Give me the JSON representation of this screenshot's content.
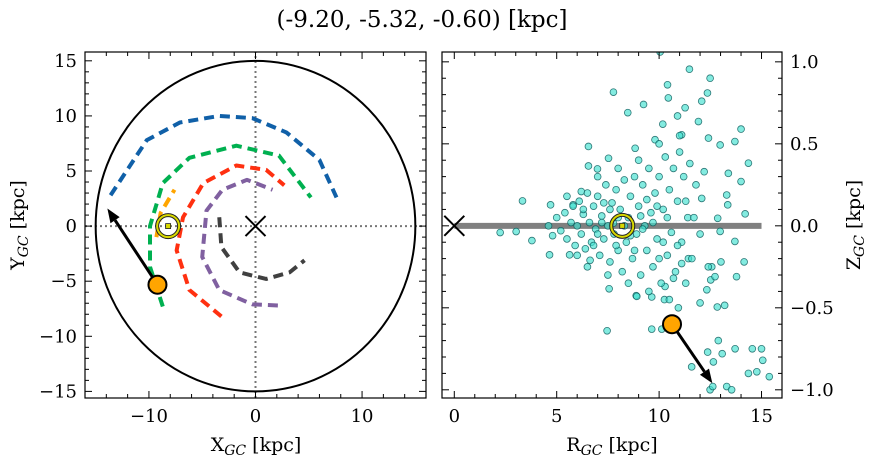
{
  "chart_data": [
    {
      "type": "line",
      "title": "(-9.20, -5.32, -0.60) [kpc]",
      "xlabel": {
        "main": "X",
        "sub": "GC",
        "unit": " [kpc]"
      },
      "ylabel": {
        "main": "Y",
        "sub": "GC",
        "unit": " [kpc]"
      },
      "xlim": [
        -16,
        16
      ],
      "ylim": [
        -15.6,
        15.8
      ],
      "xticks": [
        {
          "v": -10,
          "label": "−10"
        },
        {
          "v": 0,
          "label": "0"
        },
        {
          "v": 10,
          "label": "10"
        }
      ],
      "yticks": [
        {
          "v": 15,
          "label": "15"
        },
        {
          "v": 10,
          "label": "10"
        },
        {
          "v": 5,
          "label": "5"
        },
        {
          "v": 0,
          "label": "0"
        },
        {
          "v": -5,
          "label": "−5"
        },
        {
          "v": -10,
          "label": "−10"
        },
        {
          "v": -15,
          "label": "−15"
        }
      ],
      "x_minor_step": 2,
      "y_minor_step": 1,
      "boundary_circle_radius": 15,
      "reference_lines": {
        "x": 0,
        "y": 0,
        "style": "dotted",
        "color": "#777777"
      },
      "galactic_center": [
        0,
        0
      ],
      "sun": [
        -8.2,
        0
      ],
      "object": {
        "x": -9.2,
        "y": -5.32,
        "color": "#ffa500"
      },
      "velocity_arrow_tip": [
        -13.9,
        1.6
      ],
      "arms": [
        {
          "color": "#1060a8",
          "points": [
            [
              -13.6,
              2.8
            ],
            [
              -10.2,
              7.8
            ],
            [
              -7.1,
              9.4
            ],
            [
              -3.4,
              10.0
            ],
            [
              -0.3,
              9.8
            ],
            [
              2.9,
              8.5
            ],
            [
              6.0,
              6.0
            ],
            [
              7.6,
              2.6
            ]
          ]
        },
        {
          "color": "#00b050",
          "points": [
            [
              -8.7,
              -7.3
            ],
            [
              -9.9,
              -3.7
            ],
            [
              -9.9,
              0
            ],
            [
              -8.7,
              3.9
            ],
            [
              -6.2,
              6.2
            ],
            [
              -1.8,
              7.3
            ],
            [
              2.2,
              6.4
            ],
            [
              5.2,
              2.6
            ]
          ]
        },
        {
          "color": "#ffa500",
          "points": [
            [
              -9.3,
              -1.0
            ],
            [
              -8.9,
              1.2
            ],
            [
              -7.6,
              3.3
            ]
          ]
        },
        {
          "color": "#ff3010",
          "points": [
            [
              -3.2,
              -8.2
            ],
            [
              -6.2,
              -5.8
            ],
            [
              -7.4,
              -2.2
            ],
            [
              -6.8,
              0.8
            ],
            [
              -4.9,
              3.9
            ],
            [
              -1.8,
              5.5
            ],
            [
              1.0,
              5.1
            ],
            [
              2.7,
              3.7
            ]
          ]
        },
        {
          "color": "#8060a0",
          "points": [
            [
              2.1,
              -7.2
            ],
            [
              -0.3,
              -7.1
            ],
            [
              -3.4,
              -5.8
            ],
            [
              -5.0,
              -2.8
            ],
            [
              -4.6,
              1.4
            ],
            [
              -3.1,
              3.3
            ],
            [
              -0.8,
              4.2
            ],
            [
              1.6,
              3.3
            ]
          ]
        },
        {
          "color": "#404040",
          "points": [
            [
              -3.4,
              0.8
            ],
            [
              -3.2,
              -1.9
            ],
            [
              -1.5,
              -4.2
            ],
            [
              1.0,
              -4.8
            ],
            [
              3.2,
              -4.2
            ],
            [
              4.6,
              -3.1
            ]
          ]
        }
      ]
    },
    {
      "type": "scatter",
      "xlabel": {
        "main": "R",
        "sub": "GC",
        "unit": " [kpc]"
      },
      "ylabel": {
        "main": "Z",
        "sub": "GC",
        "unit": " [kpc]"
      },
      "xlim": [
        -0.6,
        16
      ],
      "ylim": [
        -1.05,
        1.06
      ],
      "xticks": [
        {
          "v": 0,
          "label": "0"
        },
        {
          "v": 5,
          "label": "5"
        },
        {
          "v": 10,
          "label": "10"
        },
        {
          "v": 15,
          "label": "15"
        }
      ],
      "yticks": [
        {
          "v": 1.0,
          "label": "1.0"
        },
        {
          "v": 0.5,
          "label": "0.5"
        },
        {
          "v": 0.0,
          "label": "0.0"
        },
        {
          "v": -0.5,
          "label": "−0.5"
        },
        {
          "v": -1.0,
          "label": "−1.0"
        }
      ],
      "y_axis_side": "right",
      "x_minor_step": 1,
      "y_minor_step": 0.1,
      "point_color": "#40e0d0",
      "point_edge_color": "#0a5a5a",
      "disk_line": {
        "x": [
          0,
          15
        ],
        "y": 0,
        "color": "#808080"
      },
      "galactic_center": [
        0,
        0
      ],
      "sun": [
        8.2,
        0
      ],
      "object": {
        "x": 10.63,
        "y": -0.6,
        "color": "#ffa500"
      },
      "velocity_arrow_tip": [
        12.6,
        -0.96
      ],
      "points": [
        [
          10.05,
          1.06
        ],
        [
          11.48,
          0.955
        ],
        [
          12.49,
          0.9
        ],
        [
          7.77,
          0.815
        ],
        [
          10.41,
          0.86
        ],
        [
          10.45,
          0.78
        ],
        [
          9.24,
          0.74
        ],
        [
          12.36,
          0.81
        ],
        [
          12.08,
          0.76
        ],
        [
          8.47,
          0.69
        ],
        [
          11.27,
          0.72
        ],
        [
          10.9,
          0.67
        ],
        [
          10.18,
          0.62
        ],
        [
          11.1,
          0.555
        ],
        [
          11.92,
          0.636
        ],
        [
          14.0,
          0.59
        ],
        [
          12.41,
          0.535
        ],
        [
          9.8,
          0.525
        ],
        [
          8.83,
          0.473
        ],
        [
          14.36,
          0.382
        ],
        [
          13.7,
          0.514
        ],
        [
          6.55,
          0.365
        ],
        [
          6.99,
          0.347
        ],
        [
          3.33,
          0.152
        ],
        [
          7.53,
          0.412
        ],
        [
          12.98,
          0.493
        ],
        [
          13.38,
          0.32
        ],
        [
          14.0,
          0.27
        ],
        [
          14.2,
          0.073
        ],
        [
          2.24,
          -0.041
        ],
        [
          3.02,
          -0.035
        ],
        [
          3.79,
          -0.09
        ],
        [
          4.65,
          -0.177
        ],
        [
          5.63,
          -0.177
        ],
        [
          6.63,
          -0.21
        ],
        [
          7.46,
          -0.64
        ],
        [
          8.88,
          -0.426
        ],
        [
          9.64,
          -0.434
        ],
        [
          10.26,
          -0.45
        ],
        [
          10.94,
          -0.5
        ],
        [
          12.0,
          -0.47
        ],
        [
          12.84,
          -0.495
        ],
        [
          13.2,
          -0.485
        ],
        [
          13.78,
          -0.31
        ],
        [
          14.15,
          -0.22
        ],
        [
          9.64,
          -0.63
        ],
        [
          10.13,
          -0.63
        ],
        [
          11.59,
          -0.86
        ],
        [
          12.37,
          -0.77
        ],
        [
          12.89,
          -0.7
        ],
        [
          13.08,
          -0.78
        ],
        [
          12.65,
          -0.83
        ],
        [
          13.71,
          -0.75
        ],
        [
          14.55,
          -0.75
        ],
        [
          15.0,
          -0.75
        ],
        [
          15.06,
          -0.82
        ],
        [
          14.77,
          -0.89
        ],
        [
          14.36,
          -0.9
        ],
        [
          15.38,
          -0.92
        ],
        [
          13.3,
          -0.98
        ],
        [
          13.54,
          -1.0
        ],
        [
          12.49,
          -1.0
        ],
        [
          12.62,
          -0.98
        ],
        [
          10.29,
          -0.37
        ],
        [
          11.1,
          -0.23
        ],
        [
          11.43,
          -0.2
        ],
        [
          12.57,
          -0.25
        ],
        [
          13.02,
          -0.22
        ],
        [
          12.52,
          -0.33
        ],
        [
          12.33,
          -0.39
        ],
        [
          12.73,
          -0.31
        ],
        [
          7.56,
          -0.384
        ],
        [
          8.91,
          -0.43
        ],
        [
          10.7,
          -0.32
        ],
        [
          13.7,
          -0.095
        ],
        [
          12.98,
          -0.034
        ],
        [
          12.08,
          0.167
        ],
        [
          13.3,
          0.188
        ],
        [
          13.35,
          0.128
        ],
        [
          12.86,
          0.046
        ],
        [
          6.2,
          0.209
        ],
        [
          5.8,
          0.128
        ],
        [
          4.7,
          0.128
        ],
        [
          7.77,
          0.016
        ],
        [
          6.55,
          0.484
        ],
        [
          5.0,
          0.05
        ],
        [
          5.2,
          -0.03
        ],
        [
          5.4,
          0.08
        ],
        [
          5.5,
          -0.08
        ],
        [
          5.7,
          0.02
        ],
        [
          5.8,
          0.12
        ],
        [
          5.9,
          -0.12
        ],
        [
          6.0,
          0.0
        ],
        [
          6.1,
          0.15
        ],
        [
          6.2,
          -0.05
        ],
        [
          6.3,
          0.07
        ],
        [
          6.4,
          -0.14
        ],
        [
          6.5,
          0.2
        ],
        [
          6.6,
          0.02
        ],
        [
          6.7,
          -0.1
        ],
        [
          6.8,
          0.12
        ],
        [
          6.9,
          -0.02
        ],
        [
          7.0,
          0.18
        ],
        [
          7.1,
          -0.18
        ],
        [
          7.2,
          0.06
        ],
        [
          7.3,
          -0.08
        ],
        [
          7.4,
          0.25
        ],
        [
          7.5,
          0.0
        ],
        [
          7.6,
          -0.22
        ],
        [
          7.7,
          0.14
        ],
        [
          7.8,
          -0.05
        ],
        [
          7.9,
          0.22
        ],
        [
          8.0,
          -0.15
        ],
        [
          8.1,
          0.1
        ],
        [
          8.2,
          -0.28
        ],
        [
          8.3,
          0.28
        ],
        [
          8.4,
          -0.1
        ],
        [
          8.5,
          0.05
        ],
        [
          8.6,
          0.18
        ],
        [
          8.7,
          -0.2
        ],
        [
          8.8,
          0.3
        ],
        [
          8.9,
          -0.05
        ],
        [
          9.0,
          0.12
        ],
        [
          9.1,
          -0.3
        ],
        [
          9.2,
          0.25
        ],
        [
          9.3,
          0.0
        ],
        [
          9.4,
          -0.15
        ],
        [
          9.5,
          0.35
        ],
        [
          9.6,
          0.08
        ],
        [
          9.7,
          -0.25
        ],
        [
          9.8,
          0.2
        ],
        [
          9.9,
          -0.08
        ],
        [
          10.0,
          0.3
        ],
        [
          10.1,
          -0.35
        ],
        [
          10.2,
          0.1
        ],
        [
          10.3,
          0.42
        ],
        [
          10.4,
          -0.18
        ],
        [
          10.5,
          0.22
        ],
        [
          10.6,
          -0.04
        ],
        [
          10.7,
          0.35
        ],
        [
          10.8,
          -0.28
        ],
        [
          10.9,
          0.15
        ],
        [
          11.0,
          0.45
        ],
        [
          11.1,
          -0.1
        ],
        [
          11.2,
          0.3
        ],
        [
          11.3,
          -0.35
        ],
        [
          11.4,
          0.05
        ],
        [
          11.5,
          0.38
        ],
        [
          11.6,
          -0.2
        ],
        [
          11.8,
          0.25
        ],
        [
          12.0,
          -0.05
        ],
        [
          12.2,
          0.33
        ],
        [
          12.4,
          -0.25
        ],
        [
          4.6,
          0.0
        ],
        [
          4.8,
          -0.06
        ],
        [
          6.5,
          -0.25
        ],
        [
          7.0,
          0.3
        ],
        [
          7.5,
          -0.3
        ],
        [
          8.0,
          0.35
        ],
        [
          8.5,
          -0.35
        ],
        [
          9.0,
          0.4
        ],
        [
          9.5,
          -0.4
        ],
        [
          10.0,
          0.5
        ],
        [
          10.5,
          -0.45
        ],
        [
          11.0,
          0.55
        ],
        [
          6.0,
          -0.18
        ],
        [
          5.5,
          0.18
        ],
        [
          7.2,
          0.02
        ],
        [
          8.3,
          0.0
        ],
        [
          9.2,
          -0.02
        ],
        [
          10.2,
          -0.1
        ],
        [
          7.6,
          0.1
        ],
        [
          7.9,
          -0.12
        ],
        [
          8.6,
          -0.06
        ],
        [
          9.1,
          0.06
        ],
        [
          9.4,
          0.16
        ],
        [
          9.7,
          0.02
        ],
        [
          10.4,
          0.05
        ],
        [
          10.9,
          -0.12
        ],
        [
          8.0,
          0.05
        ],
        [
          8.8,
          -0.15
        ],
        [
          6.8,
          -0.12
        ],
        [
          7.3,
          0.14
        ],
        [
          9.9,
          0.12
        ],
        [
          11.3,
          0.15
        ],
        [
          11.7,
          0.05
        ],
        [
          10.0,
          -0.2
        ],
        [
          7.0,
          -0.05
        ],
        [
          6.3,
          0.1
        ]
      ]
    }
  ]
}
